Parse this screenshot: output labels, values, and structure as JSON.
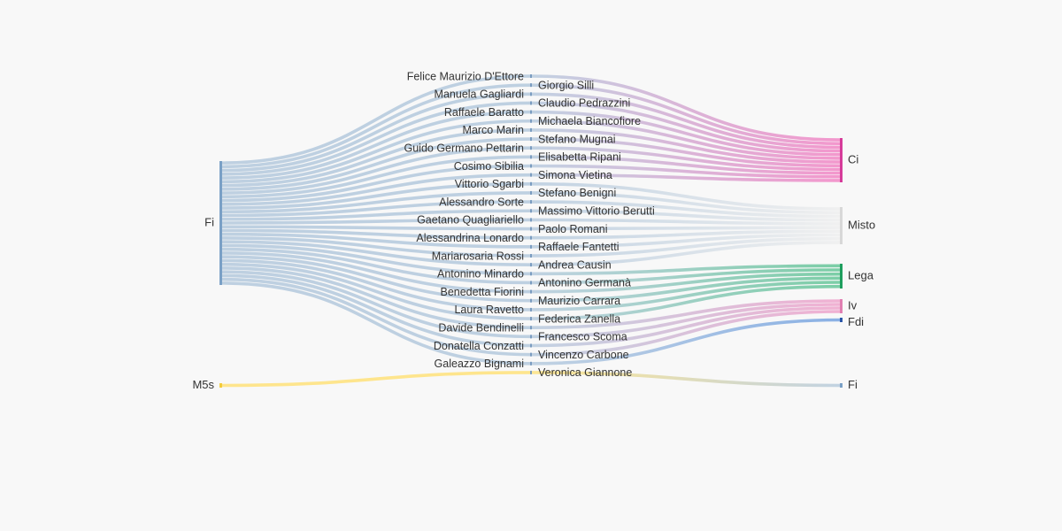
{
  "chart_data": {
    "type": "sankey",
    "title": "",
    "colors": {
      "Fi": "#b4c9dd",
      "M5s": "#ffe27a",
      "Ci": "#f27fc2",
      "Misto": "#eeeeee",
      "Lega": "#5cc392",
      "Iv": "#ef9fc9",
      "Fdi": "#6f9fe0",
      "FiTarget": "#b4c9dd"
    },
    "left_nodes": [
      "Fi",
      "M5s"
    ],
    "right_nodes": [
      "Ci",
      "Misto",
      "Lega",
      "Iv",
      "Fdi",
      "Fi"
    ],
    "politicians": [
      {
        "name": "Felice Maurizio D'Ettore",
        "from": "Fi",
        "to": "Ci"
      },
      {
        "name": "Giorgio Silli",
        "from": "Fi",
        "to": "Ci"
      },
      {
        "name": "Manuela Gagliardi",
        "from": "Fi",
        "to": "Ci"
      },
      {
        "name": "Claudio Pedrazzini",
        "from": "Fi",
        "to": "Ci"
      },
      {
        "name": "Raffaele Baratto",
        "from": "Fi",
        "to": "Ci"
      },
      {
        "name": "Michaela Biancofiore",
        "from": "Fi",
        "to": "Ci"
      },
      {
        "name": "Marco Marin",
        "from": "Fi",
        "to": "Ci"
      },
      {
        "name": "Stefano Mugnai",
        "from": "Fi",
        "to": "Ci"
      },
      {
        "name": "Guido Germano Pettarin",
        "from": "Fi",
        "to": "Ci"
      },
      {
        "name": "Elisabetta Ripani",
        "from": "Fi",
        "to": "Ci"
      },
      {
        "name": "Cosimo Sibilia",
        "from": "Fi",
        "to": "Ci"
      },
      {
        "name": "Simona Vietina",
        "from": "Fi",
        "to": "Ci"
      },
      {
        "name": "Vittorio Sgarbi",
        "from": "Fi",
        "to": "Misto"
      },
      {
        "name": "Stefano Benigni",
        "from": "Fi",
        "to": "Misto"
      },
      {
        "name": "Alessandro Sorte",
        "from": "Fi",
        "to": "Misto"
      },
      {
        "name": "Massimo Vittorio Berutti",
        "from": "Fi",
        "to": "Misto"
      },
      {
        "name": "Gaetano Quagliariello",
        "from": "Fi",
        "to": "Misto"
      },
      {
        "name": "Paolo Romani",
        "from": "Fi",
        "to": "Misto"
      },
      {
        "name": "Alessandrina Lonardo",
        "from": "Fi",
        "to": "Misto"
      },
      {
        "name": "Raffaele Fantetti",
        "from": "Fi",
        "to": "Misto"
      },
      {
        "name": "Mariarosaria Rossi",
        "from": "Fi",
        "to": "Misto"
      },
      {
        "name": "Andrea Causin",
        "from": "Fi",
        "to": "Misto"
      },
      {
        "name": "Antonino Minardo",
        "from": "Fi",
        "to": "Lega"
      },
      {
        "name": "Antonino Germanà",
        "from": "Fi",
        "to": "Lega"
      },
      {
        "name": "Benedetta Fiorini",
        "from": "Fi",
        "to": "Lega"
      },
      {
        "name": "Maurizio Carrara",
        "from": "Fi",
        "to": "Lega"
      },
      {
        "name": "Laura Ravetto",
        "from": "Fi",
        "to": "Lega"
      },
      {
        "name": "Federica Zanella",
        "from": "Fi",
        "to": "Lega"
      },
      {
        "name": "Davide Bendinelli",
        "from": "Fi",
        "to": "Iv"
      },
      {
        "name": "Francesco Scoma",
        "from": "Fi",
        "to": "Iv"
      },
      {
        "name": "Donatella Conzatti",
        "from": "Fi",
        "to": "Iv"
      },
      {
        "name": "Vincenzo Carbone",
        "from": "Fi",
        "to": "Iv"
      },
      {
        "name": "Galeazzo Bignami",
        "from": "Fi",
        "to": "Fdi"
      },
      {
        "name": "Veronica Giannone",
        "from": "M5s",
        "to": "Fi"
      }
    ]
  }
}
